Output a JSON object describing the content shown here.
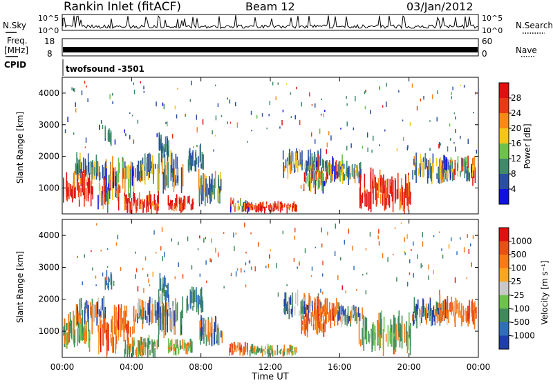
{
  "header": {
    "station": "Rankin Inlet (fitACF)",
    "beam": "Beam 12",
    "date": "03/Jan/2012"
  },
  "top_panels": {
    "nsky_label": "N.Sky",
    "nsearch_label": "N.Search",
    "nsky_ticks": [
      "10^5",
      "10^0"
    ],
    "nsearch_ticks": [
      "10^5",
      "10^0"
    ],
    "freq_label_1": "Freq.",
    "freq_label_2": "[MHz]",
    "freq_ticks": [
      "18",
      "8"
    ],
    "nave_label": "Nave",
    "nave_ticks": [
      "60",
      "0"
    ],
    "cpid_label": "CPID",
    "cpid_value": "twofsound -3501"
  },
  "chart_data": [
    {
      "type": "heatmap",
      "title": "",
      "xlabel": "Time UT",
      "ylabel": "Slant Range [km]",
      "x_ticks": [
        "00:00",
        "04:00",
        "08:00",
        "12:00",
        "16:00",
        "20:00",
        "00:00"
      ],
      "y_ticks": [
        "1000",
        "2000",
        "3000",
        "4000"
      ],
      "ylim": [
        180,
        4500
      ],
      "colorbar_label": "Power [dB]",
      "colorbar_ticks": [
        "4",
        "8",
        "12",
        "16",
        "20",
        "24",
        "28"
      ],
      "colors": [
        "#1010e0",
        "#2a4fa0",
        "#3f8a6a",
        "#6cc24a",
        "#f5c518",
        "#f58a18",
        "#e83a14",
        "#e01010"
      ]
    },
    {
      "type": "heatmap",
      "title": "",
      "xlabel": "Time UT",
      "ylabel": "Slant Range [km]",
      "x_ticks": [
        "00:00",
        "04:00",
        "08:00",
        "12:00",
        "16:00",
        "20:00",
        "00:00"
      ],
      "y_ticks": [
        "1000",
        "2000",
        "3000",
        "4000"
      ],
      "ylim": [
        180,
        4500
      ],
      "colorbar_label": "Velocity [m s⁻¹]",
      "colorbar_ticks": [
        "1000",
        "500",
        "100",
        "25",
        "-25",
        "-100",
        "-500",
        "-1000"
      ],
      "colors": [
        "#1f3fa8",
        "#2f6fb8",
        "#3f8a5a",
        "#6cc24a",
        "#c8c8c8",
        "#f5a623",
        "#f57a18",
        "#e8501a",
        "#e01010"
      ]
    }
  ]
}
